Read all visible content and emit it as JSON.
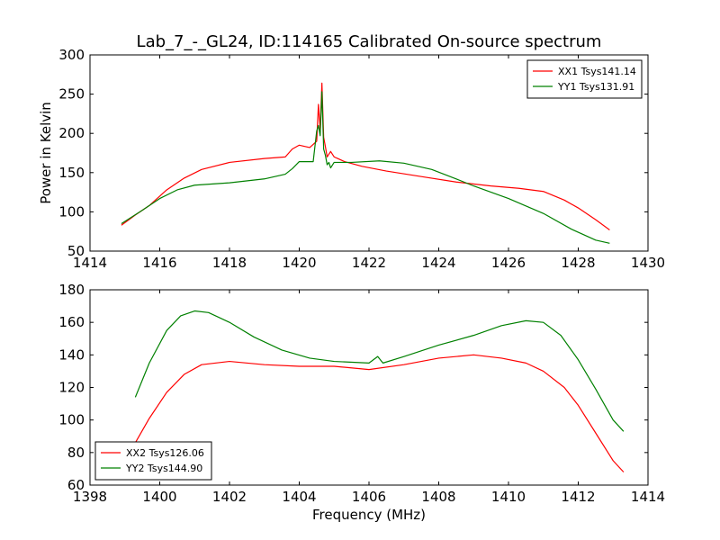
{
  "chart_data": [
    {
      "type": "line",
      "title": "Lab_7_-_GL24, ID:114165 Calibrated On-source spectrum",
      "xlabel": "",
      "ylabel": "Power in Kelvin",
      "xlim": [
        1414,
        1430
      ],
      "ylim": [
        50,
        300
      ],
      "xticks": [
        1414,
        1416,
        1418,
        1420,
        1422,
        1424,
        1426,
        1428,
        1430
      ],
      "yticks": [
        50,
        100,
        150,
        200,
        250,
        300
      ],
      "grid": false,
      "legend_position": "top-right",
      "series": [
        {
          "name": "XX1 Tsys141.14",
          "color": "#ff0000",
          "x": [
            1414.9,
            1415.3,
            1415.7,
            1416.2,
            1416.7,
            1417.2,
            1418.0,
            1419.0,
            1419.6,
            1419.8,
            1420.0,
            1420.3,
            1420.5,
            1420.55,
            1420.6,
            1420.65,
            1420.7,
            1420.75,
            1420.8,
            1420.9,
            1421.0,
            1421.1,
            1421.3,
            1421.8,
            1422.5,
            1423.5,
            1424.5,
            1425.5,
            1426.3,
            1427.0,
            1427.6,
            1428.0,
            1428.5,
            1428.9
          ],
          "y": [
            83,
            96,
            108,
            128,
            143,
            154,
            163,
            168,
            170,
            180,
            185,
            182,
            190,
            237,
            205,
            264,
            195,
            183,
            170,
            177,
            170,
            168,
            164,
            158,
            152,
            145,
            138,
            133,
            130,
            126,
            115,
            105,
            90,
            77
          ]
        },
        {
          "name": "YY1 Tsys131.91",
          "color": "#008000",
          "x": [
            1414.9,
            1415.5,
            1416.0,
            1416.5,
            1417.0,
            1418.0,
            1419.0,
            1419.6,
            1419.8,
            1420.0,
            1420.4,
            1420.5,
            1420.55,
            1420.6,
            1420.65,
            1420.7,
            1420.75,
            1420.8,
            1420.85,
            1420.9,
            1421.0,
            1421.5,
            1422.3,
            1423.0,
            1423.8,
            1424.5,
            1425.0,
            1426.0,
            1427.0,
            1427.8,
            1428.5,
            1428.9
          ],
          "y": [
            85,
            102,
            117,
            128,
            134,
            137,
            142,
            148,
            155,
            164,
            164,
            203,
            210,
            197,
            253,
            180,
            172,
            160,
            163,
            156,
            163,
            163,
            165,
            162,
            154,
            142,
            133,
            117,
            98,
            78,
            64,
            60
          ]
        }
      ]
    },
    {
      "type": "line",
      "title": "",
      "xlabel": "Frequency (MHz)",
      "ylabel": "",
      "xlim": [
        1398,
        1414
      ],
      "ylim": [
        60,
        180
      ],
      "xticks": [
        1398,
        1400,
        1402,
        1404,
        1406,
        1408,
        1410,
        1412,
        1414
      ],
      "yticks": [
        60,
        80,
        100,
        120,
        140,
        160,
        180
      ],
      "grid": false,
      "legend_position": "bottom-left",
      "series": [
        {
          "name": "XX2 Tsys126.06",
          "color": "#ff0000",
          "x": [
            1399.3,
            1399.7,
            1400.2,
            1400.7,
            1401.2,
            1402.0,
            1403.0,
            1404.0,
            1405.0,
            1406.0,
            1407.0,
            1408.0,
            1409.0,
            1409.8,
            1410.5,
            1411.0,
            1411.6,
            1412.0,
            1412.5,
            1413.0,
            1413.3
          ],
          "y": [
            86,
            101,
            117,
            128,
            134,
            136,
            134,
            133,
            133,
            131,
            134,
            138,
            140,
            138,
            135,
            130,
            120,
            109,
            92,
            75,
            68
          ]
        },
        {
          "name": "YY2 Tsys144.90",
          "color": "#008000",
          "x": [
            1399.3,
            1399.7,
            1400.2,
            1400.6,
            1401.0,
            1401.4,
            1402.0,
            1402.7,
            1403.5,
            1404.3,
            1405.0,
            1406.0,
            1406.25,
            1406.4,
            1407.0,
            1408.0,
            1409.0,
            1409.8,
            1410.5,
            1411.0,
            1411.5,
            1412.0,
            1412.5,
            1413.0,
            1413.3
          ],
          "y": [
            114,
            135,
            155,
            164,
            167,
            166,
            160,
            151,
            143,
            138,
            136,
            135,
            139,
            135,
            139,
            146,
            152,
            158,
            161,
            160,
            152,
            137,
            119,
            100,
            93
          ]
        }
      ]
    }
  ]
}
